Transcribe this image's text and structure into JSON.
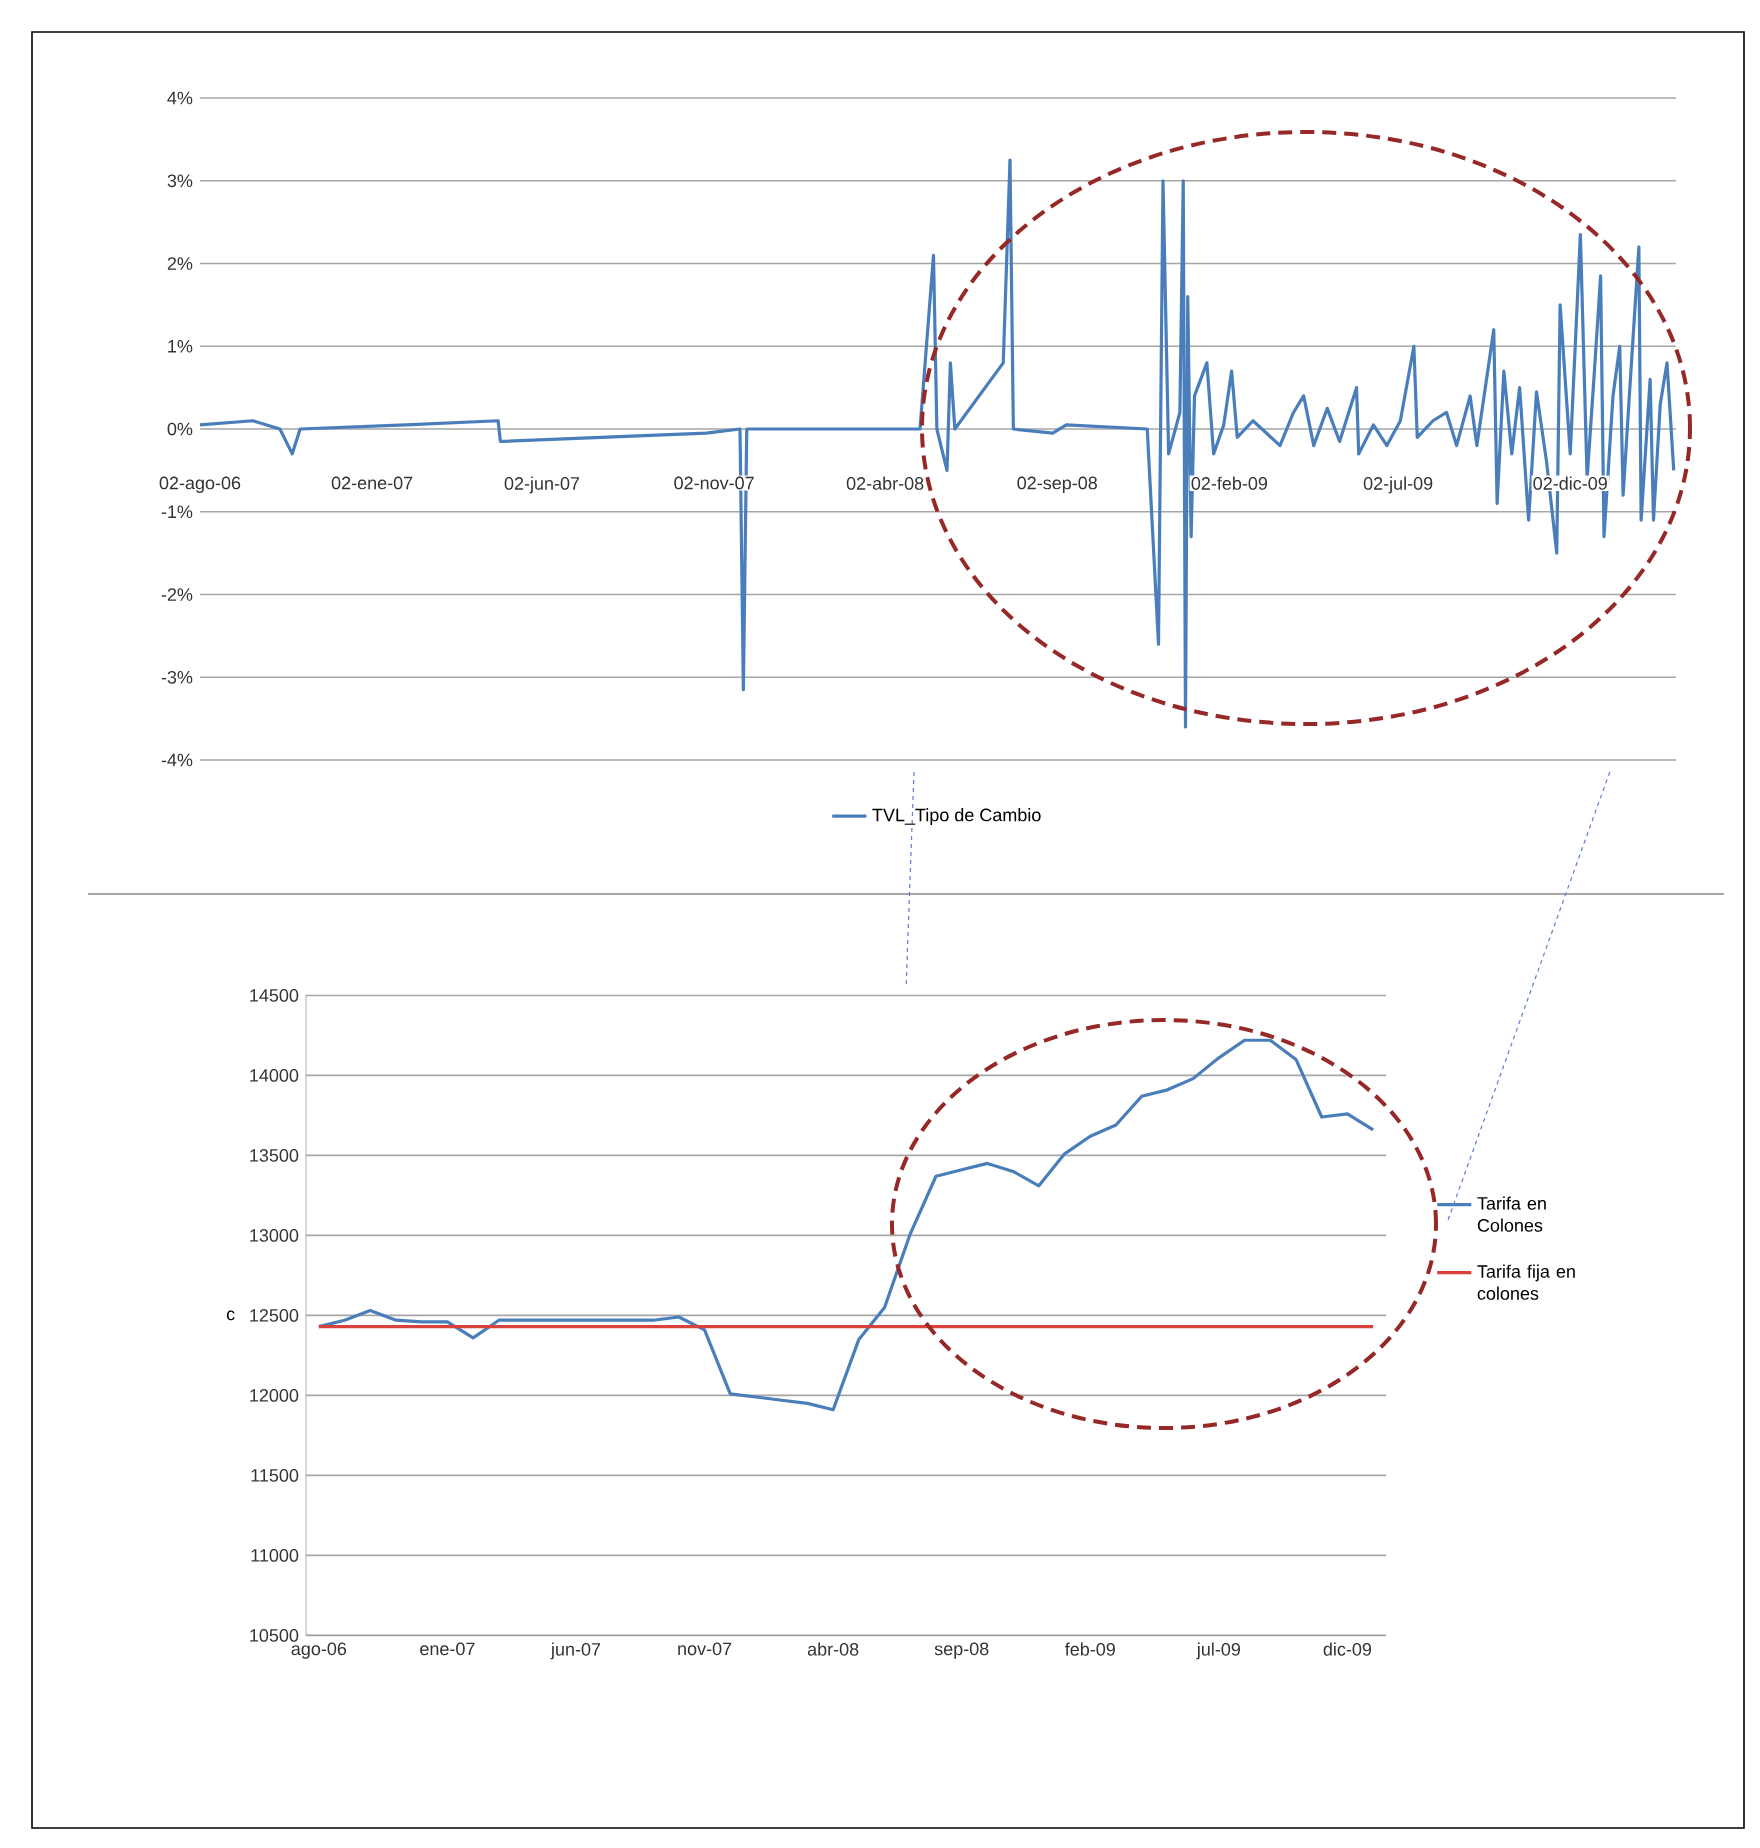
{
  "chart_data": [
    {
      "type": "line",
      "x": [
        "2006-08-02",
        "2006-09-18",
        "2006-10-12",
        "2006-10-23",
        "2006-10-30",
        "2007-02-01",
        "2007-04-24",
        "2007-04-26",
        "2007-10-26",
        "2007-11-25",
        "2007-11-28",
        "2007-12-01",
        "2008-03-28",
        "2008-05-03",
        "2008-05-15",
        "2008-05-18",
        "2008-05-27",
        "2008-05-30",
        "2008-06-03",
        "2008-07-16",
        "2008-07-22",
        "2008-07-25",
        "2008-08-29",
        "2008-09-10",
        "2008-11-21",
        "2008-12-01",
        "2008-12-05",
        "2008-12-10",
        "2008-12-20",
        "2008-12-23",
        "2008-12-25",
        "2008-12-27",
        "2008-12-30",
        "2009-01-02",
        "2009-01-13",
        "2009-01-19",
        "2009-01-28",
        "2009-02-04",
        "2009-02-09",
        "2009-02-23",
        "2009-03-19",
        "2009-03-31",
        "2009-04-09",
        "2009-04-18",
        "2009-04-30",
        "2009-05-11",
        "2009-05-26",
        "2009-05-28",
        "2009-06-10",
        "2009-06-22",
        "2009-07-04",
        "2009-07-16",
        "2009-07-19",
        "2009-08-02",
        "2009-08-14",
        "2009-08-23",
        "2009-09-04",
        "2009-09-10",
        "2009-09-25",
        "2009-09-28",
        "2009-10-04",
        "2009-10-11",
        "2009-10-18",
        "2009-10-26",
        "2009-11-02",
        "2009-11-11",
        "2009-11-20",
        "2009-11-23",
        "2009-12-02",
        "2009-12-11",
        "2009-12-17",
        "2009-12-23",
        "2009-12-29",
        "2010-01-01",
        "2010-01-09",
        "2010-01-15",
        "2010-01-18",
        "2010-01-24",
        "2010-02-01",
        "2010-02-03",
        "2010-02-11",
        "2010-02-14",
        "2010-02-20",
        "2010-02-26",
        "2010-03-04"
      ],
      "series": [
        {
          "name": "TVL_Tipo de Cambio",
          "color": "#4a7ebb",
          "values": [
            0.05,
            0.1,
            0,
            -0.3,
            0,
            0.05,
            0.1,
            -0.15,
            -0.05,
            0,
            -3.15,
            0,
            0,
            0,
            2.1,
            0,
            -0.5,
            0.8,
            0,
            0.8,
            3.25,
            0,
            -0.05,
            0.05,
            0,
            -2.6,
            3.0,
            -0.3,
            0.2,
            3.0,
            -3.6,
            1.6,
            -1.3,
            0.4,
            0.8,
            -0.3,
            0.05,
            0.7,
            -0.1,
            0.1,
            -0.2,
            0.2,
            0.4,
            -0.2,
            0.25,
            -0.15,
            0.5,
            -0.3,
            0.05,
            -0.2,
            0.1,
            1.0,
            -0.1,
            0.1,
            0.2,
            -0.2,
            0.4,
            -0.2,
            1.2,
            -0.9,
            0.7,
            -0.3,
            0.5,
            -1.1,
            0.45,
            -0.4,
            -1.5,
            1.5,
            -0.3,
            2.35,
            -0.6,
            0.6,
            1.85,
            -1.3,
            0.4,
            1.0,
            -0.8,
            0.5,
            2.2,
            -1.1,
            0.6,
            -1.1,
            0.3,
            0.8,
            -0.5
          ]
        }
      ],
      "xlim": [
        "2006-08-02",
        "2010-03-06"
      ],
      "xticks": [
        {
          "value": "2006-08-02",
          "label": "02-ago-06"
        },
        {
          "value": "2007-01-02",
          "label": "02-ene-07"
        },
        {
          "value": "2007-06-02",
          "label": "02-jun-07"
        },
        {
          "value": "2007-11-02",
          "label": "02-nov-07"
        },
        {
          "value": "2008-04-02",
          "label": "02-abr-08"
        },
        {
          "value": "2008-09-02",
          "label": "02-sep-08"
        },
        {
          "value": "2009-02-02",
          "label": "02-feb-09"
        },
        {
          "value": "2009-07-02",
          "label": "02-jul-09"
        },
        {
          "value": "2009-12-02",
          "label": "02-dic-09"
        }
      ],
      "ylim": [
        -4,
        4
      ],
      "yticks": [
        {
          "value": -4,
          "label": "-4%"
        },
        {
          "value": -3,
          "label": "-3%"
        },
        {
          "value": -2,
          "label": "-2%"
        },
        {
          "value": -1,
          "label": "-1%"
        },
        {
          "value": 0,
          "label": "0%"
        },
        {
          "value": 1,
          "label": "1%"
        },
        {
          "value": 2,
          "label": "2%"
        },
        {
          "value": 3,
          "label": "3%"
        },
        {
          "value": 4,
          "label": "4%"
        }
      ],
      "grid": "y",
      "legend": "bottom"
    },
    {
      "type": "line",
      "categories": [
        "ago-06",
        null,
        null,
        null,
        null,
        "ene-07",
        null,
        null,
        null,
        null,
        "jun-07",
        null,
        null,
        null,
        null,
        "nov-07",
        null,
        null,
        null,
        null,
        "abr-08",
        null,
        null,
        null,
        null,
        "sep-08",
        null,
        null,
        null,
        null,
        "feb-09",
        null,
        null,
        null,
        null,
        "jul-09",
        null,
        null,
        null,
        null,
        "dic-09",
        null
      ],
      "series": [
        {
          "name": "Tarifa en Colones",
          "color": "#4a7ebb",
          "values": [
            12430,
            12470,
            12530,
            12470,
            12460,
            12460,
            12360,
            12470,
            12470,
            12470,
            12470,
            12470,
            12470,
            12470,
            12490,
            12410,
            12010,
            11990,
            11970,
            11950,
            11910,
            12350,
            12550,
            13010,
            13370,
            13410,
            13450,
            13400,
            13310,
            13510,
            13620,
            13690,
            13870,
            13910,
            13980,
            14110,
            14220,
            14220,
            14100,
            13740,
            13760,
            13660
          ]
        },
        {
          "name": "Tarifa fija en colones",
          "color": "#d9413b",
          "values": [
            12430,
            12430,
            12430,
            12430,
            12430,
            12430,
            12430,
            12430,
            12430,
            12430,
            12430,
            12430,
            12430,
            12430,
            12430,
            12430,
            12430,
            12430,
            12430,
            12430,
            12430,
            12430,
            12430,
            12430,
            12430,
            12430,
            12430,
            12430,
            12430,
            12430,
            12430,
            12430,
            12430,
            12430,
            12430,
            12430,
            12430,
            12430,
            12430,
            12430,
            12430,
            12430
          ]
        }
      ],
      "ylabel": "c",
      "ylim": [
        10500,
        14500
      ],
      "yticks": [
        10500,
        11000,
        11500,
        12000,
        12500,
        13000,
        13500,
        14000,
        14500
      ],
      "grid": "y",
      "legend": "right"
    }
  ]
}
